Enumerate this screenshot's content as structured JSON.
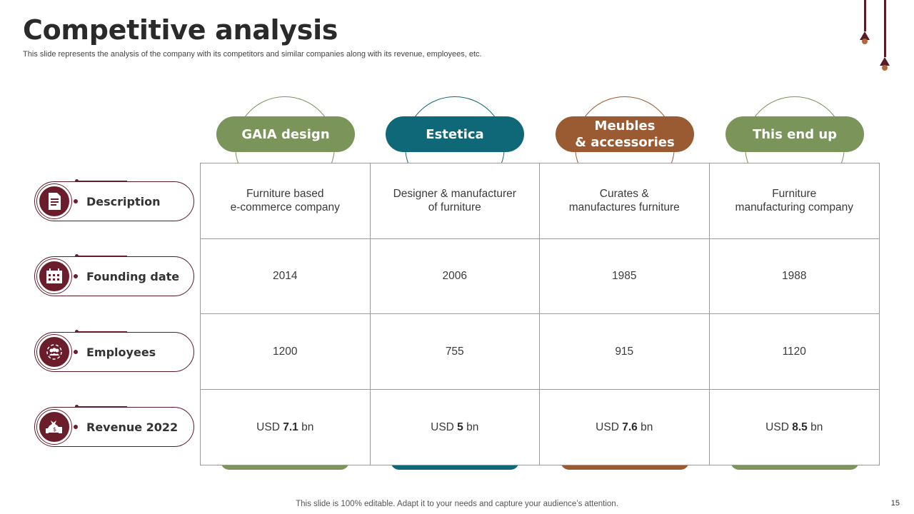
{
  "slide": {
    "title": "Competitive analysis",
    "subtitle": "This slide represents the analysis of the company with its competitors and similar companies along with its revenue, employees, etc.",
    "footer": "This slide is 100% editable. Adapt it to your needs and capture your audience’s attention.",
    "page_number": "15"
  },
  "colors": {
    "maroon": "#6b1d2c",
    "green": "#7a9459",
    "teal": "#0f6877",
    "brown": "#9a5a32"
  },
  "companies": [
    {
      "name": "GAIA design",
      "color": "#7a9459"
    },
    {
      "name": "Estetica",
      "color": "#0f6877"
    },
    {
      "name": "Meubles\n& accessories",
      "line1": "Meubles",
      "line2": "& accessories",
      "color": "#9a5a32"
    },
    {
      "name": "This end up",
      "color": "#7a9459"
    }
  ],
  "rows": [
    {
      "label": "Description",
      "icon": "document-icon"
    },
    {
      "label": "Founding date",
      "icon": "calendar-icon"
    },
    {
      "label": "Employees",
      "icon": "team-icon"
    },
    {
      "label": "Revenue 2022",
      "icon": "money-bag-icon"
    }
  ],
  "table": {
    "description": [
      {
        "line1": "Furniture based",
        "line2": "e-commerce company"
      },
      {
        "line1": "Designer & manufacturer",
        "line2": "of furniture"
      },
      {
        "line1": "Curates &",
        "line2": "manufactures furniture"
      },
      {
        "line1": "Furniture",
        "line2": "manufacturing company"
      }
    ],
    "founding_date": [
      "2014",
      "2006",
      "1985",
      "1988"
    ],
    "employees": [
      "1200",
      "755",
      "915",
      "1120"
    ],
    "revenue": [
      {
        "prefix": "USD",
        "value": "7.1",
        "suffix": "bn"
      },
      {
        "prefix": "USD",
        "value": "5",
        "suffix": "bn"
      },
      {
        "prefix": "USD",
        "value": "7.6",
        "suffix": "bn"
      },
      {
        "prefix": "USD",
        "value": "8.5",
        "suffix": "bn"
      }
    ]
  }
}
